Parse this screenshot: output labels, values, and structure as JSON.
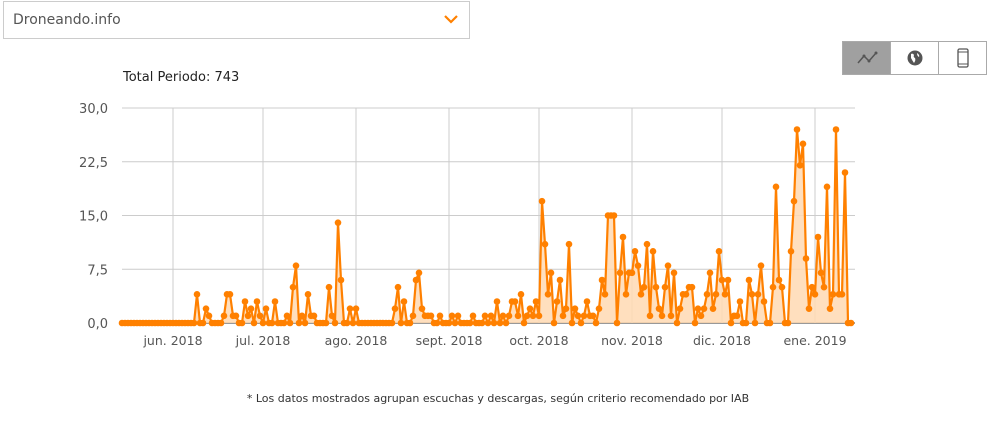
{
  "selector": {
    "value": "Droneando.info",
    "icon": "chevron-down-icon"
  },
  "view_buttons": [
    {
      "icon": "line-chart-icon",
      "active": true
    },
    {
      "icon": "globe-icon",
      "active": false
    },
    {
      "icon": "mobile-icon",
      "active": false
    }
  ],
  "total_label": "Total Periodo: 743",
  "footnote": "* Los datos mostrados agrupan escuchas y descargas, según criterio recomendado por IAB",
  "colors": {
    "line": "#ff8000",
    "fill": "#ffd9b3",
    "grid": "#cccccc"
  },
  "chart_data": {
    "type": "area",
    "title": "",
    "xlabel": "",
    "ylabel": "",
    "ylim": [
      0,
      30
    ],
    "yticks": [
      "0,0",
      "7,5",
      "15,0",
      "22,5",
      "30,0"
    ],
    "ytick_values": [
      0,
      7.5,
      15,
      22.5,
      30
    ],
    "xticks": [
      {
        "label": "jun. 2018",
        "index": 17
      },
      {
        "label": "jul. 2018",
        "index": 47
      },
      {
        "label": "ago. 2018",
        "index": 78
      },
      {
        "label": "sept. 2018",
        "index": 109
      },
      {
        "label": "oct. 2018",
        "index": 139
      },
      {
        "label": "nov. 2018",
        "index": 170
      },
      {
        "label": "dic. 2018",
        "index": 200
      },
      {
        "label": "ene. 2019",
        "index": 231
      }
    ],
    "values": [
      0,
      0,
      0,
      0,
      0,
      0,
      0,
      0,
      0,
      0,
      0,
      0,
      0,
      0,
      0,
      0,
      0,
      0,
      0,
      0,
      0,
      0,
      0,
      0,
      0,
      4,
      0,
      0,
      2,
      1,
      0,
      0,
      0,
      0,
      1,
      4,
      4,
      1,
      1,
      0,
      0,
      3,
      1,
      2,
      0,
      3,
      1,
      0,
      2,
      0,
      0,
      3,
      0,
      0,
      0,
      1,
      0,
      5,
      8,
      0,
      1,
      0,
      4,
      1,
      1,
      0,
      0,
      0,
      0,
      5,
      1,
      0,
      14,
      6,
      0,
      0,
      2,
      0,
      2,
      0,
      0,
      0,
      0,
      0,
      0,
      0,
      0,
      0,
      0,
      0,
      0,
      2,
      5,
      0,
      3,
      0,
      0,
      1,
      6,
      7,
      2,
      1,
      1,
      1,
      0,
      0,
      1,
      0,
      0,
      0,
      1,
      0,
      1,
      0,
      0,
      0,
      0,
      1,
      0,
      0,
      0,
      1,
      0,
      1,
      0,
      3,
      0,
      1,
      0,
      1,
      3,
      3,
      1,
      4,
      0,
      1,
      2,
      1,
      3,
      1,
      17,
      11,
      4,
      7,
      0,
      3,
      6,
      1,
      2,
      11,
      0,
      2,
      1,
      0,
      1,
      3,
      1,
      1,
      0,
      2,
      6,
      4,
      15,
      15,
      15,
      0,
      7,
      12,
      4,
      7,
      7,
      10,
      8,
      4,
      5,
      11,
      1,
      10,
      5,
      2,
      1,
      5,
      8,
      1,
      7,
      0,
      2,
      4,
      4,
      5,
      5,
      0,
      2,
      1,
      2,
      4,
      7,
      2,
      4,
      10,
      6,
      4,
      6,
      0,
      1,
      1,
      3,
      0,
      0,
      6,
      4,
      0,
      4,
      8,
      3,
      0,
      0,
      5,
      19,
      6,
      5,
      0,
      0,
      10,
      17,
      27,
      22,
      25,
      9,
      2,
      5,
      4,
      12,
      7,
      5,
      19,
      2,
      4,
      27,
      4,
      4,
      21,
      0,
      0
    ]
  }
}
